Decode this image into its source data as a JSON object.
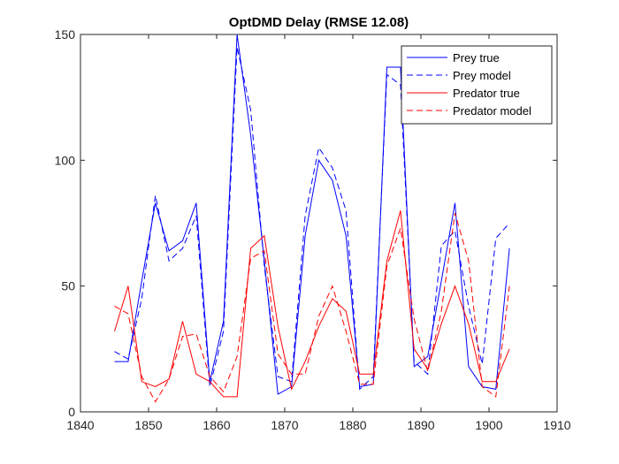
{
  "chart_data": {
    "type": "line",
    "title": "OptDMD Delay (RMSE 12.08)",
    "xlabel": "",
    "ylabel": "",
    "xlim": [
      1840,
      1910
    ],
    "ylim": [
      0,
      150
    ],
    "xticks": [
      1840,
      1850,
      1860,
      1870,
      1880,
      1890,
      1900,
      1910
    ],
    "yticks": [
      0,
      50,
      100,
      150
    ],
    "grid": false,
    "legend_position": "top-right",
    "x": [
      1845,
      1847,
      1849,
      1851,
      1853,
      1855,
      1857,
      1859,
      1861,
      1863,
      1865,
      1867,
      1869,
      1871,
      1873,
      1875,
      1877,
      1879,
      1881,
      1883,
      1885,
      1887,
      1889,
      1891,
      1893,
      1895,
      1897,
      1899,
      1901,
      1903
    ],
    "series": [
      {
        "name": "Prey true",
        "color": "#0000ff",
        "dash": "solid",
        "values": [
          20,
          20,
          52,
          83,
          64,
          68,
          83,
          12,
          36,
          150,
          110,
          60,
          7,
          10,
          70,
          100,
          92,
          70,
          10,
          11,
          137,
          137,
          18,
          22,
          52,
          83,
          18,
          10,
          9,
          65
        ]
      },
      {
        "name": "Prey model",
        "color": "#0000ff",
        "dash": "dashed",
        "values": [
          24,
          21,
          45,
          86,
          60,
          65,
          78,
          10,
          32,
          145,
          120,
          58,
          14,
          12,
          78,
          105,
          97,
          80,
          9,
          14,
          134,
          130,
          20,
          15,
          66,
          72,
          42,
          19,
          69,
          75
        ]
      },
      {
        "name": "Predator true",
        "color": "#ff0000",
        "dash": "solid",
        "values": [
          32,
          50,
          12,
          10,
          13,
          36,
          15,
          12,
          6,
          6,
          65,
          70,
          34,
          9,
          20,
          34,
          45,
          40,
          15,
          15,
          60,
          80,
          25,
          17,
          35,
          50,
          35,
          12,
          12,
          25
        ]
      },
      {
        "name": "Predator model",
        "color": "#ff0000",
        "dash": "dashed",
        "values": [
          42,
          39,
          14,
          4,
          13,
          30,
          31,
          14,
          8,
          22,
          61,
          64,
          23,
          15,
          15,
          38,
          50,
          32,
          11,
          11,
          58,
          73,
          37,
          16,
          40,
          79,
          60,
          10,
          6,
          50
        ]
      }
    ]
  }
}
